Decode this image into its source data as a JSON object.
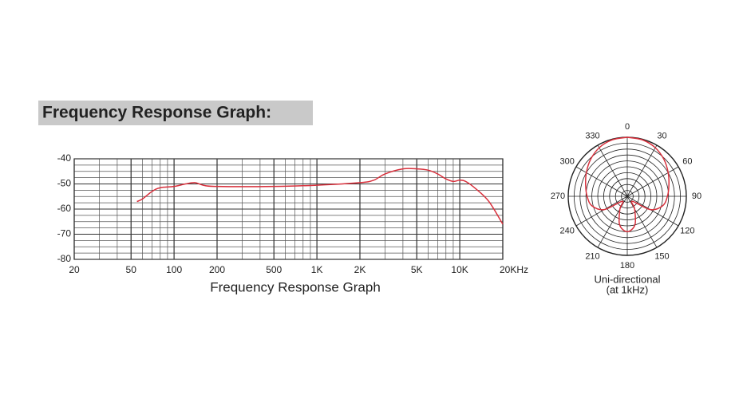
{
  "chart_data": [
    {
      "type": "line",
      "title": "Frequency Response Graph:",
      "xlabel": "Frequency Response Graph",
      "xscale": "log",
      "xlim": [
        20,
        20000
      ],
      "xticks": [
        20,
        50,
        100,
        200,
        500,
        {
          "value": 1000,
          "label": "1K"
        },
        {
          "value": 2000,
          "label": "2K"
        },
        {
          "value": 5000,
          "label": "5K"
        },
        {
          "value": 10000,
          "label": "10K"
        },
        {
          "value": 20000,
          "label": "20KHz"
        }
      ],
      "ylim": [
        -80,
        -40
      ],
      "yticks": [
        -40,
        -50,
        -60,
        -70,
        -80
      ],
      "grid": true,
      "color": "#d8303c",
      "x": [
        55,
        60,
        70,
        80,
        100,
        120,
        140,
        160,
        200,
        500,
        1000,
        2000,
        2500,
        3000,
        4000,
        5000,
        6000,
        7000,
        8000,
        9000,
        10000,
        11000,
        13000,
        16000,
        20000
      ],
      "values": [
        -57,
        -56,
        -53,
        -51.5,
        -51,
        -50,
        -49.5,
        -50.5,
        -51,
        -51,
        -50.5,
        -49.5,
        -48.5,
        -46,
        -44,
        -44,
        -44.5,
        -46,
        -48,
        -49,
        -48.5,
        -49,
        -52,
        -57,
        -66
      ]
    },
    {
      "type": "polar",
      "title": "Uni-directional",
      "subtitle": "(at  1kHz)",
      "thetaticks": [
        0,
        30,
        60,
        90,
        120,
        150,
        180,
        210,
        240,
        270,
        300,
        330
      ],
      "rlim": [
        0,
        10
      ],
      "color": "#d8303c",
      "theta": [
        0,
        15,
        30,
        45,
        60,
        75,
        90,
        105,
        120,
        135,
        150,
        165,
        180,
        195,
        210,
        225,
        240,
        255,
        270,
        285,
        300,
        315,
        330,
        345
      ],
      "values": [
        10,
        9.9,
        9.5,
        8.8,
        8,
        7.3,
        6.8,
        6.2,
        4.5,
        1.2,
        2.5,
        5,
        6,
        5,
        2.5,
        1.2,
        4.5,
        6.2,
        6.8,
        7.3,
        8,
        8.8,
        9.5,
        9.9
      ]
    }
  ]
}
